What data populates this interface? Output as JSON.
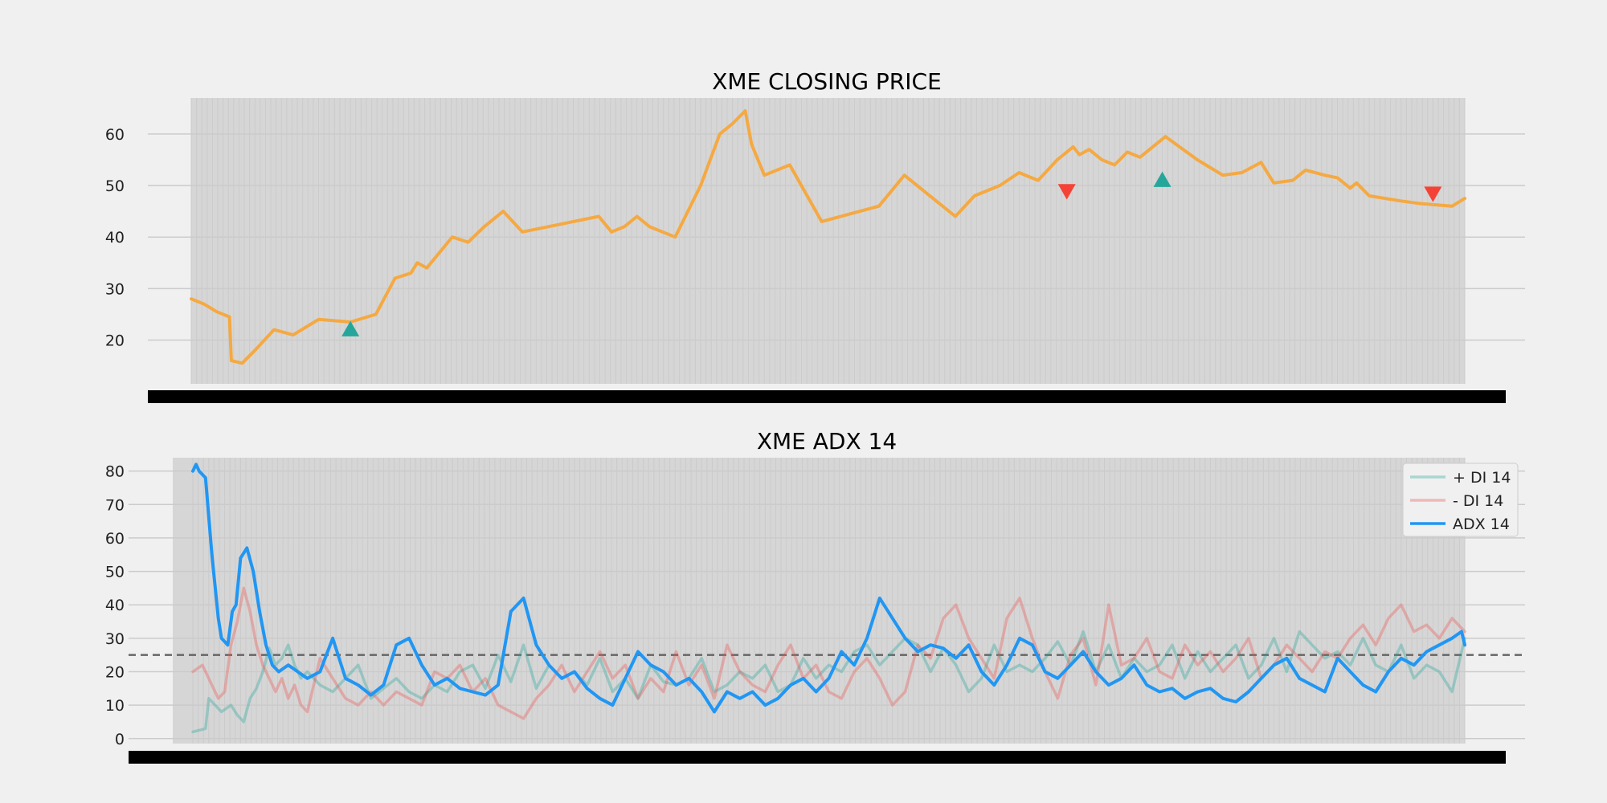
{
  "colors": {
    "background": "#f0f0f0",
    "plot_bg": "#d6d6d6",
    "grid": "#cbcbcb",
    "close": "#f5a942",
    "buy_marker": "#26a69a",
    "sell_marker": "#f44336",
    "plus_di": "#26a69a",
    "minus_di": "#ef5350",
    "adx": "#2196f3",
    "threshold": "#666666"
  },
  "chart_data": [
    {
      "type": "line",
      "title": "XME CLOSING PRICE",
      "ylim": [
        11.5,
        67
      ],
      "yticks": [
        20,
        30,
        40,
        50,
        60
      ],
      "x_count": 1000,
      "grid": true,
      "series": [
        {
          "key": "close",
          "x": [
            0,
            20,
            40,
            60,
            63,
            80,
            100,
            130,
            160,
            200,
            250,
            290,
            320,
            345,
            355,
            370,
            390,
            410,
            435,
            460,
            490,
            520,
            560,
            600,
            640,
            660,
            680,
            700,
            720,
            760,
            800,
            830,
            850,
            870,
            880,
            900,
            940,
            990,
            1080,
            1120,
            1160,
            1200,
            1230,
            1270,
            1300,
            1330,
            1360,
            1385,
            1395,
            1410,
            1430,
            1450,
            1470,
            1490,
            1530,
            1580,
            1620,
            1650,
            1680,
            1700,
            1730,
            1750,
            1780,
            1800,
            1820,
            1830,
            1850,
            1900,
            1930,
            1980,
            2000
          ],
          "values": [
            28,
            27,
            25.5,
            24.5,
            16,
            15.5,
            18,
            22,
            21,
            24,
            23.5,
            25,
            32,
            33,
            35,
            34,
            37,
            40,
            39,
            42,
            45,
            41,
            42,
            43,
            44,
            41,
            42,
            44,
            42,
            40,
            50,
            60,
            62,
            64.5,
            58,
            52,
            54,
            43,
            46,
            52,
            48,
            44,
            48,
            50,
            52.5,
            51,
            55,
            57.5,
            56,
            57,
            55,
            54,
            56.5,
            55.5,
            59.5,
            55,
            52,
            52.5,
            54.5,
            50.5,
            51,
            53,
            52,
            51.5,
            49.5,
            50.5,
            48,
            47,
            46.5,
            46,
            47.5
          ]
        }
      ],
      "markers": [
        {
          "type": "buy",
          "x": 250,
          "y": 22
        },
        {
          "type": "sell",
          "x": 1375,
          "y": 49
        },
        {
          "type": "buy",
          "x": 1525,
          "y": 51
        },
        {
          "type": "sell",
          "x": 1950,
          "y": 48.5
        }
      ]
    },
    {
      "type": "line",
      "title": "XME ADX 14",
      "ylim": [
        -1.5,
        84
      ],
      "yticks": [
        0,
        10,
        20,
        30,
        40,
        50,
        60,
        70,
        80
      ],
      "x_count": 1000,
      "grid": true,
      "threshold": 25,
      "legend": "top-right",
      "series": [
        {
          "key": "plus_di",
          "name": "+ DI 14",
          "x": [
            0,
            20,
            25,
            35,
            45,
            60,
            70,
            80,
            90,
            100,
            110,
            120,
            130,
            140,
            150,
            160,
            170,
            180,
            200,
            220,
            240,
            260,
            280,
            300,
            320,
            340,
            360,
            380,
            400,
            420,
            440,
            460,
            480,
            500,
            520,
            540,
            560,
            580,
            600,
            620,
            640,
            660,
            680,
            700,
            720,
            740,
            760,
            780,
            800,
            820,
            840,
            860,
            880,
            900,
            920,
            940,
            960,
            980,
            1000,
            1020,
            1040,
            1060,
            1080,
            1100,
            1120,
            1140,
            1160,
            1180,
            1200,
            1220,
            1240,
            1260,
            1280,
            1300,
            1320,
            1340,
            1360,
            1380,
            1400,
            1420,
            1440,
            1460,
            1480,
            1500,
            1520,
            1540,
            1560,
            1580,
            1600,
            1620,
            1640,
            1660,
            1680,
            1700,
            1720,
            1740,
            1760,
            1780,
            1800,
            1820,
            1840,
            1860,
            1880,
            1900,
            1920,
            1940,
            1960,
            1980,
            2000
          ],
          "values": [
            2,
            3,
            12,
            10,
            8,
            10,
            7,
            5,
            12,
            15,
            20,
            27,
            22,
            24,
            28,
            22,
            18,
            20,
            16,
            14,
            18,
            22,
            12,
            15,
            18,
            14,
            12,
            16,
            14,
            20,
            22,
            15,
            25,
            17,
            28,
            15,
            22,
            18,
            20,
            16,
            24,
            14,
            18,
            12,
            22,
            17,
            16,
            18,
            24,
            14,
            16,
            20,
            18,
            22,
            14,
            16,
            24,
            18,
            22,
            20,
            26,
            28,
            22,
            26,
            30,
            28,
            20,
            27,
            22,
            14,
            18,
            28,
            20,
            22,
            20,
            24,
            29,
            22,
            32,
            20,
            28,
            18,
            24,
            20,
            22,
            28,
            18,
            26,
            20,
            24,
            28,
            18,
            22,
            30,
            20,
            32,
            28,
            24,
            26,
            22,
            30,
            22,
            20,
            28,
            18,
            22,
            20,
            14,
            30
          ]
        },
        {
          "key": "minus_di",
          "name": "- DI 14",
          "x": [
            0,
            15,
            30,
            40,
            50,
            60,
            70,
            80,
            90,
            100,
            110,
            120,
            130,
            140,
            150,
            160,
            170,
            180,
            200,
            220,
            240,
            260,
            280,
            300,
            320,
            340,
            360,
            380,
            400,
            420,
            440,
            460,
            480,
            500,
            520,
            540,
            560,
            580,
            600,
            620,
            640,
            660,
            680,
            700,
            720,
            740,
            760,
            780,
            800,
            820,
            840,
            860,
            880,
            900,
            920,
            940,
            960,
            980,
            1000,
            1020,
            1040,
            1060,
            1080,
            1100,
            1120,
            1140,
            1160,
            1180,
            1200,
            1220,
            1240,
            1260,
            1280,
            1300,
            1320,
            1340,
            1360,
            1380,
            1400,
            1420,
            1440,
            1460,
            1480,
            1500,
            1520,
            1540,
            1560,
            1580,
            1600,
            1620,
            1640,
            1660,
            1680,
            1700,
            1720,
            1740,
            1760,
            1780,
            1800,
            1820,
            1840,
            1860,
            1880,
            1900,
            1920,
            1940,
            1960,
            1980,
            2000
          ],
          "values": [
            20,
            22,
            16,
            12,
            14,
            28,
            35,
            45,
            38,
            28,
            22,
            18,
            14,
            18,
            12,
            16,
            10,
            8,
            24,
            18,
            12,
            10,
            14,
            10,
            14,
            12,
            10,
            20,
            18,
            22,
            14,
            18,
            10,
            8,
            6,
            12,
            16,
            22,
            14,
            20,
            26,
            18,
            22,
            12,
            18,
            14,
            26,
            16,
            22,
            12,
            28,
            20,
            16,
            14,
            22,
            28,
            18,
            22,
            14,
            12,
            20,
            24,
            18,
            10,
            14,
            28,
            24,
            36,
            40,
            30,
            24,
            18,
            36,
            42,
            30,
            20,
            12,
            25,
            30,
            16,
            40,
            22,
            24,
            30,
            20,
            18,
            28,
            22,
            26,
            20,
            24,
            30,
            18,
            22,
            28,
            24,
            20,
            26,
            24,
            30,
            34,
            28,
            36,
            40,
            32,
            34,
            30,
            36,
            32
          ]
        },
        {
          "key": "adx",
          "name": "ADX 14",
          "x": [
            0,
            5,
            10,
            20,
            30,
            40,
            45,
            55,
            62,
            68,
            75,
            85,
            95,
            105,
            115,
            125,
            135,
            150,
            165,
            180,
            200,
            220,
            240,
            260,
            280,
            300,
            320,
            340,
            360,
            380,
            400,
            420,
            440,
            460,
            480,
            500,
            520,
            540,
            560,
            580,
            600,
            620,
            640,
            660,
            680,
            700,
            720,
            740,
            760,
            780,
            800,
            820,
            840,
            860,
            880,
            900,
            920,
            940,
            960,
            980,
            1000,
            1020,
            1040,
            1060,
            1080,
            1100,
            1120,
            1140,
            1160,
            1180,
            1200,
            1220,
            1240,
            1260,
            1280,
            1300,
            1320,
            1340,
            1360,
            1380,
            1400,
            1420,
            1440,
            1460,
            1480,
            1500,
            1520,
            1540,
            1560,
            1580,
            1600,
            1620,
            1640,
            1660,
            1680,
            1700,
            1720,
            1740,
            1760,
            1780,
            1800,
            1820,
            1840,
            1860,
            1880,
            1900,
            1920,
            1940,
            1960,
            1980,
            1995,
            2000
          ],
          "values": [
            80,
            82,
            80,
            78,
            55,
            36,
            30,
            28,
            38,
            40,
            54,
            57,
            50,
            38,
            28,
            22,
            20,
            22,
            20,
            18,
            20,
            30,
            18,
            16,
            13,
            16,
            28,
            30,
            22,
            16,
            18,
            15,
            14,
            13,
            16,
            38,
            42,
            28,
            22,
            18,
            20,
            15,
            12,
            10,
            18,
            26,
            22,
            20,
            16,
            18,
            14,
            8,
            14,
            12,
            14,
            10,
            12,
            16,
            18,
            14,
            18,
            26,
            22,
            30,
            42,
            36,
            30,
            26,
            28,
            27,
            24,
            28,
            20,
            16,
            22,
            30,
            28,
            20,
            18,
            22,
            26,
            20,
            16,
            18,
            22,
            16,
            14,
            15,
            12,
            14,
            15,
            12,
            11,
            14,
            18,
            22,
            24,
            18,
            16,
            14,
            24,
            20,
            16,
            14,
            20,
            24,
            22,
            26,
            28,
            30,
            32,
            28
          ]
        }
      ]
    }
  ]
}
